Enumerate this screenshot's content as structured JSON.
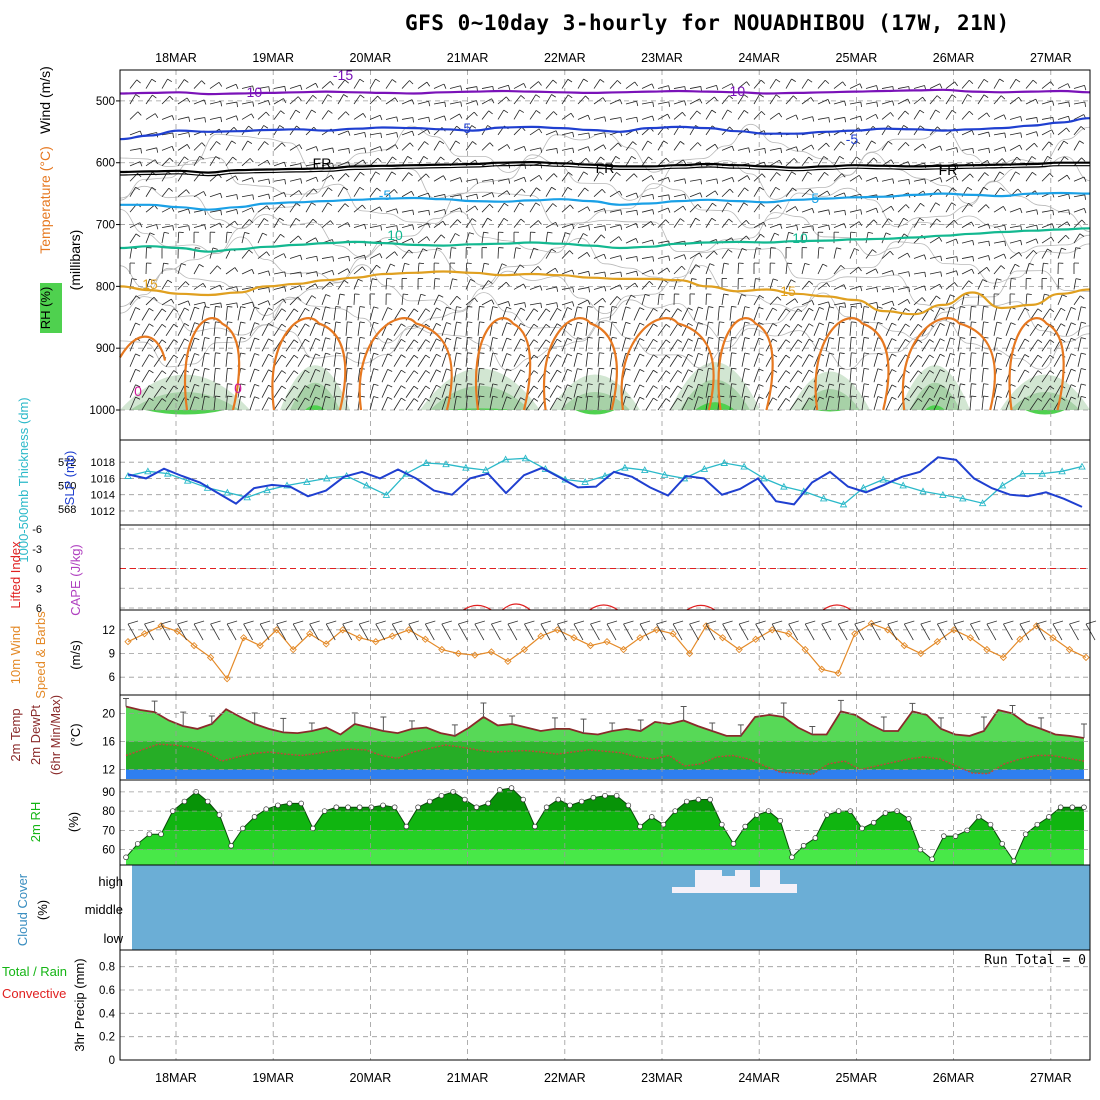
{
  "header": {
    "title": "GFS 0~10day 3-hourly for NOUADHIBOU (17W, 21N)"
  },
  "dates": [
    "18MAR",
    "19MAR",
    "20MAR",
    "21MAR",
    "22MAR",
    "23MAR",
    "24MAR",
    "25MAR",
    "26MAR",
    "27MAR"
  ],
  "colors": {
    "frame": "#000000",
    "grid": "#9a9a9a",
    "purple": "#7a12b8",
    "blue": "#1f3fd0",
    "black": "#000000",
    "cyan": "#1aa0e6",
    "teal": "#13b890",
    "gold": "#e0a020",
    "orange": "#e67820",
    "magenta": "#d0169a",
    "rh_light": "#cde3cd",
    "rh_mid": "#9ccc9c",
    "rh_dark": "#4fd14f",
    "slp": "#1f3fd0",
    "thick": "#2bb9c9",
    "lift": "#e02020",
    "cape": "#b040c0",
    "wind10": "#e48a28",
    "temp_fill": "#57d957",
    "temp_line": "#8a2a2a",
    "dew_fill": "#2fb52f",
    "dew_line": "#c4453a",
    "rh2m_1": "#48e848",
    "rh2m_2": "#25d025",
    "rh2m_3": "#10b510",
    "rh2m_4": "#079307",
    "cloud_bg": "#6baed6",
    "cloud_hi": "#f4f0f8"
  },
  "panels": {
    "upper": {
      "axis_label": "(millibars)",
      "side_labels": [
        "Wind (m/s)",
        "Temperature (°C)",
        "RH (%)"
      ],
      "ticks": [
        "500",
        "600",
        "700",
        "800",
        "900",
        "1000"
      ],
      "tick_values": [
        500,
        600,
        700,
        800,
        900,
        1000
      ],
      "contour_labels": [
        {
          "text": "-15",
          "series": "purple"
        },
        {
          "text": "-10",
          "series": "purple"
        },
        {
          "text": "-10",
          "series": "purple"
        },
        {
          "text": "-5",
          "series": "blue"
        },
        {
          "text": "-5",
          "series": "blue"
        },
        {
          "text": "FR",
          "series": "black"
        },
        {
          "text": "FR",
          "series": "black"
        },
        {
          "text": "FR",
          "series": "black"
        },
        {
          "text": "-5",
          "series": "cyan"
        },
        {
          "text": "-5",
          "series": "cyan"
        },
        {
          "text": "10",
          "series": "teal"
        },
        {
          "text": "10",
          "series": "teal"
        },
        {
          "text": "15",
          "series": "gold"
        },
        {
          "text": "15",
          "series": "gold"
        },
        {
          "text": "0",
          "series": "magenta"
        },
        {
          "text": "0",
          "series": "magenta"
        }
      ],
      "isotherms": [
        {
          "series": "purple",
          "values": [
            488,
            487,
            486,
            489,
            488,
            487,
            486,
            485,
            486,
            487,
            488,
            486,
            485,
            484,
            485,
            486,
            487,
            486,
            485,
            484,
            485,
            486,
            488,
            487,
            486,
            485,
            484,
            483,
            482,
            485,
            486,
            485,
            484,
            486
          ]
        },
        {
          "series": "blue",
          "values": [
            562,
            556,
            548,
            550,
            549,
            547,
            546,
            548,
            545,
            543,
            544,
            546,
            548,
            543,
            542,
            544,
            547,
            550,
            544,
            542,
            544,
            549,
            553,
            553,
            550,
            548,
            545,
            546,
            548,
            546,
            544,
            540,
            535,
            528
          ]
        },
        {
          "series": "black",
          "values": [
            615,
            614,
            613,
            616,
            612,
            611,
            610,
            609,
            606,
            605,
            604,
            603,
            602,
            600,
            599,
            601,
            603,
            606,
            606,
            604,
            602,
            604,
            606,
            608,
            606,
            604,
            605,
            606,
            605,
            604,
            603,
            602,
            600,
            600
          ]
        },
        {
          "series": "cyan",
          "values": [
            668,
            668,
            672,
            676,
            672,
            666,
            664,
            662,
            660,
            658,
            657,
            659,
            662,
            663,
            661,
            659,
            662,
            668,
            666,
            662,
            660,
            662,
            664,
            660,
            658,
            656,
            655,
            652,
            650,
            652,
            654,
            650,
            649,
            650
          ]
        },
        {
          "series": "teal",
          "values": [
            738,
            735,
            738,
            744,
            740,
            736,
            733,
            730,
            728,
            730,
            733,
            734,
            732,
            731,
            729,
            731,
            734,
            738,
            736,
            731,
            729,
            728,
            729,
            727,
            726,
            724,
            723,
            721,
            718,
            715,
            712,
            710,
            708,
            706
          ]
        },
        {
          "series": "gold",
          "values": [
            800,
            806,
            812,
            814,
            810,
            800,
            796,
            790,
            786,
            780,
            778,
            776,
            778,
            782,
            780,
            782,
            786,
            788,
            788,
            790,
            800,
            808,
            805,
            812,
            816,
            822,
            840,
            845,
            830,
            810,
            835,
            830,
            812,
            805
          ]
        }
      ],
      "orange_blobs_x": [
        1.0,
        2.0,
        3.0,
        4.0,
        4.8,
        5.7,
        6.5,
        7.6,
        8.6,
        9.5
      ],
      "rh_hills": [
        {
          "x0": 0.0,
          "x1": 1.3,
          "top": 950
        },
        {
          "x0": 1.6,
          "x1": 2.3,
          "top": 920
        },
        {
          "x0": 3.0,
          "x1": 4.2,
          "top": 930
        },
        {
          "x0": 4.3,
          "x1": 5.2,
          "top": 950
        },
        {
          "x0": 5.5,
          "x1": 6.4,
          "top": 910
        },
        {
          "x0": 6.7,
          "x1": 7.5,
          "top": 940
        },
        {
          "x0": 7.8,
          "x1": 8.5,
          "top": 920
        },
        {
          "x0": 8.8,
          "x1": 9.7,
          "top": 950
        }
      ]
    },
    "thickness_slp": {
      "left_label": "1000-500mb Thickness (dm)",
      "right_label": "SLP (mb)",
      "thick_ticks": [
        "572",
        "570",
        "568"
      ],
      "thick_tick_values": [
        572,
        570,
        568
      ],
      "slp_ticks": [
        "1018",
        "1016",
        "1014",
        "1012"
      ],
      "slp_tick_values": [
        1018,
        1016,
        1014,
        1012
      ],
      "thickness": [
        570.8,
        571.2,
        571.0,
        570.4,
        569.8,
        569.4,
        569.0,
        569.6,
        570.0,
        570.3,
        570.6,
        570.8,
        570.0,
        569.2,
        571.0,
        571.9,
        571.8,
        571.5,
        571.3,
        572.2,
        572.3,
        571.4,
        570.5,
        570.3,
        570.8,
        571.5,
        571.3,
        570.9,
        570.6,
        571.4,
        571.9,
        571.6,
        570.6,
        569.9,
        569.5,
        568.9,
        568.4,
        569.8,
        570.5,
        570.0,
        569.5,
        569.2,
        568.9,
        568.5,
        570.0,
        571.0,
        571.0,
        571.2,
        571.6
      ],
      "slp": [
        1016.5,
        1016.0,
        1017.2,
        1016.3,
        1015.5,
        1014.2,
        1012.9,
        1014.8,
        1015.2,
        1015.0,
        1013.8,
        1014.5,
        1016.2,
        1016.8,
        1016.0,
        1017.1,
        1016.0,
        1014.5,
        1014.0,
        1016.0,
        1016.6,
        1014.2,
        1016.4,
        1017.3,
        1016.1,
        1014.9,
        1015.0,
        1016.8,
        1016.2,
        1014.9,
        1013.9,
        1016.3,
        1016.0,
        1014.0,
        1014.7,
        1016.0,
        1013.2,
        1012.8,
        1015.5,
        1016.8,
        1015.0,
        1014.3,
        1015.2,
        1016.2,
        1016.8,
        1018.6,
        1018.3,
        1016.0,
        1014.8,
        1014.0,
        1013.8,
        1014.3,
        1013.5,
        1012.5
      ]
    },
    "lifted_cape": {
      "left_label": "Lifted Index",
      "right_label": "CAPE (J/kg)",
      "ticks": [
        "-6",
        "-3",
        "0",
        "3",
        "6"
      ],
      "tick_values": [
        -6,
        -3,
        0,
        3,
        6
      ],
      "lifted_bumps": [
        {
          "day": 3.3,
          "val": 5.8
        },
        {
          "day": 3.7,
          "val": 5.4
        },
        {
          "day": 4.6,
          "val": 5.7
        },
        {
          "day": 5.6,
          "val": 5.8
        },
        {
          "day": 7.0,
          "val": 5.7
        }
      ]
    },
    "wind10": {
      "left_label": "10m Wind",
      "mid_label": "Speed & Barbs",
      "units": "(m/s)",
      "ticks": [
        "12",
        "9",
        "6"
      ],
      "tick_values": [
        12,
        9,
        6
      ],
      "speed": [
        10.5,
        11.5,
        12.5,
        11.8,
        10.0,
        8.5,
        5.8,
        11.0,
        10.0,
        12.0,
        9.5,
        11.5,
        10.2,
        12.0,
        11.0,
        10.5,
        11.2,
        12.0,
        10.8,
        9.5,
        9.0,
        8.8,
        9.2,
        8.0,
        9.5,
        11.2,
        12.0,
        11.0,
        10.0,
        10.5,
        9.5,
        11.0,
        12.0,
        11.5,
        9.0,
        12.5,
        11.0,
        9.5,
        10.8,
        12.0,
        11.5,
        9.5,
        7.0,
        6.5,
        11.5,
        12.8,
        12.0,
        10.0,
        9.0,
        10.5,
        12.0,
        11.0,
        9.5,
        8.5,
        10.8,
        12.5,
        11.0,
        9.5,
        8.5
      ]
    },
    "temp2m": {
      "left_label": "2m Temp",
      "mid_label": "2m DewPt",
      "right_label": "(6hr Min/Max)",
      "units": "(°C)",
      "ticks": [
        "20",
        "16",
        "12"
      ],
      "tick_values": [
        20,
        16,
        12
      ],
      "temp": [
        21.0,
        20.5,
        20.2,
        19.0,
        18.2,
        17.8,
        18.5,
        20.6,
        19.5,
        18.5,
        17.8,
        17.3,
        17.2,
        17.5,
        18.0,
        17.0,
        18.5,
        18.0,
        17.5,
        17.2,
        17.8,
        18.0,
        17.2,
        16.8,
        18.0,
        19.5,
        18.3,
        18.5,
        18.0,
        17.5,
        17.8,
        17.8,
        17.2,
        17.0,
        17.5,
        17.8,
        17.5,
        18.8,
        18.5,
        19.0,
        18.2,
        17.5,
        16.8,
        16.8,
        19.5,
        19.8,
        19.5,
        18.0,
        17.0,
        17.0,
        20.3,
        19.8,
        18.5,
        17.5,
        17.5,
        20.3,
        19.8,
        17.8,
        17.0,
        16.8,
        17.5,
        20.5,
        20.0,
        18.5,
        17.8,
        17.0,
        16.8,
        16.5
      ],
      "dewpt": [
        14.0,
        14.8,
        15.6,
        15.5,
        15.2,
        14.5,
        13.2,
        13.8,
        14.3,
        14.5,
        14.2,
        14.0,
        14.3,
        14.7,
        14.9,
        14.8,
        14.0,
        13.6,
        14.5,
        15.0,
        15.5,
        15.2,
        14.8,
        14.5,
        14.6,
        14.7,
        14.5,
        14.2,
        14.5,
        14.8,
        14.6,
        14.4,
        13.8,
        13.5,
        14.0,
        12.5,
        12.8,
        13.8,
        14.0,
        13.5,
        12.5,
        11.6,
        11.5,
        11.3,
        12.8,
        13.2,
        12.0,
        12.5,
        13.0,
        13.5,
        13.8,
        13.5,
        12.5,
        11.5,
        11.4,
        12.8,
        13.5,
        14.0,
        14.0,
        13.6,
        13.2
      ],
      "minmax_markers": 30
    },
    "rh2m": {
      "left_label": "2m RH",
      "units": "(%)",
      "ticks": [
        "90",
        "80",
        "70",
        "60"
      ],
      "tick_values": [
        90,
        80,
        70,
        60
      ],
      "values": [
        56,
        63,
        68,
        68,
        80,
        85,
        90,
        85,
        78,
        62,
        71,
        77,
        81,
        83,
        84,
        84,
        71,
        80,
        82,
        82,
        82,
        82,
        83,
        82,
        72,
        82,
        85,
        88,
        90,
        86,
        82,
        84,
        91,
        92,
        86,
        72,
        82,
        86,
        83,
        85,
        87,
        88,
        88,
        83,
        72,
        77,
        73,
        80,
        85,
        86,
        86,
        73,
        63,
        72,
        78,
        80,
        75,
        56,
        62,
        66,
        78,
        80,
        80,
        71,
        74,
        79,
        80,
        76,
        60,
        55,
        67,
        67,
        70,
        77,
        73,
        63,
        54,
        68,
        73,
        77,
        82,
        82,
        82
      ]
    },
    "cloud": {
      "left_label": "Cloud Cover",
      "units": "(%)",
      "levels": [
        "high",
        "middle",
        "low"
      ]
    },
    "precip": {
      "left_label": "Total / Rain",
      "mid_label": "Convective",
      "units": "3hr Precip (mm)",
      "ticks": [
        "0.8",
        "0.6",
        "0.4",
        "0.2",
        "0"
      ],
      "tick_values": [
        0.8,
        0.6,
        0.4,
        0.2,
        0
      ],
      "run_total": "Run Total = 0"
    }
  }
}
